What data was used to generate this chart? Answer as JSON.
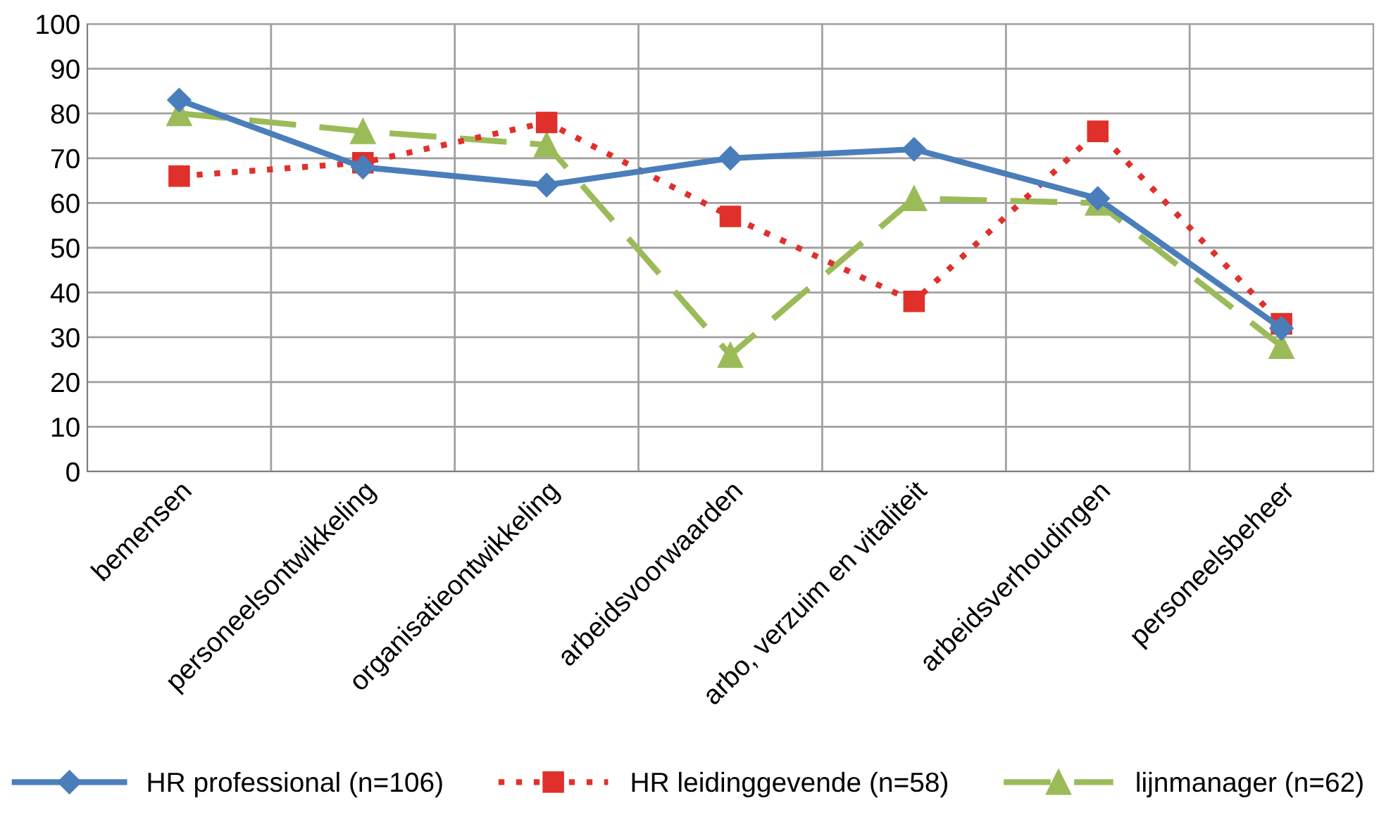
{
  "chart_data": {
    "type": "line",
    "categories": [
      "bemensen",
      "personeelsontwikkeling",
      "organisatieontwikkeling",
      "arbeidsvoorwaarden",
      "arbo, verzuim en vitaliteit",
      "arbeidsverhoudingen",
      "personeelsbeheer"
    ],
    "series": [
      {
        "name": "HR professional (n=106)",
        "color": "#4a7ebb",
        "marker": "diamond",
        "line_style": "solid",
        "values": [
          83,
          68,
          64,
          70,
          72,
          61,
          32
        ]
      },
      {
        "name": "HR leidinggevende (n=58)",
        "color": "#e0302b",
        "marker": "square",
        "line_style": "dotted",
        "values": [
          66,
          69,
          78,
          57,
          38,
          76,
          33
        ]
      },
      {
        "name": "lijnmanager (n=62)",
        "color": "#9bbb59",
        "marker": "triangle",
        "line_style": "dashed",
        "values": [
          80,
          76,
          73,
          26,
          61,
          60,
          28
        ]
      }
    ],
    "ylim": [
      0,
      100
    ],
    "yticks": [
      0,
      10,
      20,
      30,
      40,
      50,
      60,
      70,
      80,
      90,
      100
    ],
    "grid": true,
    "legend": "bottom"
  }
}
